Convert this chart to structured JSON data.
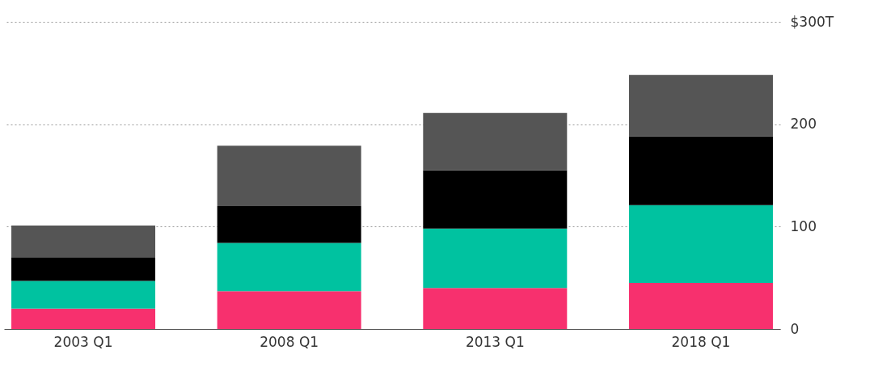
{
  "chart_data": {
    "type": "bar",
    "stacked": true,
    "categories": [
      "2003 Q1",
      "2008 Q1",
      "2013 Q1",
      "2018 Q1"
    ],
    "series": [
      {
        "color": "#f7306e",
        "values": [
          20,
          37,
          40,
          45
        ]
      },
      {
        "color": "#00c2a0",
        "values": [
          27,
          47,
          58,
          76
        ]
      },
      {
        "color": "#000000",
        "values": [
          23,
          36,
          57,
          67
        ]
      },
      {
        "color": "#555555",
        "values": [
          31,
          59,
          56,
          60
        ]
      }
    ],
    "ylim": [
      0,
      300
    ],
    "yticks": [
      0,
      100,
      200,
      {
        "value": 300,
        "label": "$300T"
      }
    ],
    "grid": "y",
    "legend": false
  }
}
